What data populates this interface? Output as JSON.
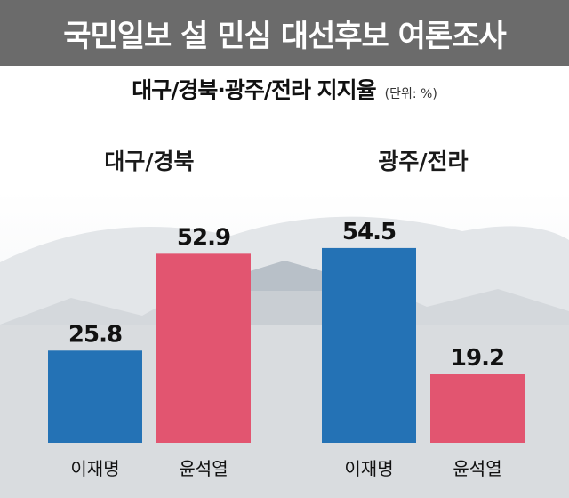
{
  "header": {
    "title": "국민일보 설 민심 대선후보 여론조사",
    "subtitle": "대구/경북·광주/전라 지지율",
    "unit": "(단위: %)"
  },
  "colors": {
    "header_bg": "#6b6b6b",
    "lee": "#2472b5",
    "yoon": "#e25570"
  },
  "chart_data": {
    "type": "bar",
    "title": "대구/경북·광주/전라 지지율",
    "unit": "(단위: %)",
    "groups": [
      {
        "name": "대구/경북",
        "categories": [
          "이재명",
          "윤석열"
        ],
        "values": [
          25.8,
          52.9
        ]
      },
      {
        "name": "광주/전라",
        "categories": [
          "이재명",
          "윤석열"
        ],
        "values": [
          54.5,
          19.2
        ]
      }
    ],
    "ylim": [
      0,
      60
    ],
    "grid": false,
    "legend": "none"
  }
}
